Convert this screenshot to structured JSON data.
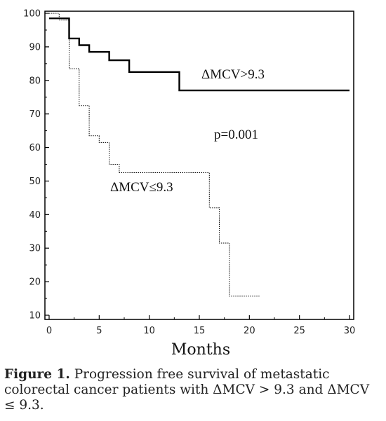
{
  "chart_data": {
    "type": "line",
    "title": "",
    "xlabel": "Months",
    "ylabel": "",
    "xlim": [
      0,
      30
    ],
    "ylim": [
      10,
      100
    ],
    "x_ticks": [
      0,
      5,
      10,
      15,
      20,
      25,
      30
    ],
    "y_ticks": [
      10,
      20,
      30,
      40,
      50,
      60,
      70,
      80,
      90,
      100
    ],
    "grid": false,
    "step": true,
    "series": [
      {
        "name": "ΔMCV>9.3",
        "style": "solid",
        "points": [
          [
            0,
            98.5
          ],
          [
            2,
            98.5
          ],
          [
            2,
            92.5
          ],
          [
            3,
            92.5
          ],
          [
            3,
            90.5
          ],
          [
            4,
            90.5
          ],
          [
            4,
            88.5
          ],
          [
            6,
            88.5
          ],
          [
            6,
            86
          ],
          [
            8,
            86
          ],
          [
            8,
            82.5
          ],
          [
            13,
            82.5
          ],
          [
            13,
            77
          ],
          [
            30,
            77
          ]
        ]
      },
      {
        "name": "ΔMCV≤9.3",
        "style": "dotted",
        "points": [
          [
            0,
            100
          ],
          [
            1,
            100
          ],
          [
            1,
            98
          ],
          [
            2,
            98
          ],
          [
            2,
            83.5
          ],
          [
            3,
            83.5
          ],
          [
            3,
            72.5
          ],
          [
            4,
            72.5
          ],
          [
            4,
            63.5
          ],
          [
            5,
            63.5
          ],
          [
            5,
            61.5
          ],
          [
            6,
            61.5
          ],
          [
            6,
            55
          ],
          [
            7,
            55
          ],
          [
            7,
            52.5
          ],
          [
            16,
            52.5
          ],
          [
            16,
            42
          ],
          [
            17,
            42
          ],
          [
            17,
            31.5
          ],
          [
            18,
            31.5
          ],
          [
            18,
            15.7
          ],
          [
            21,
            15.7
          ]
        ]
      }
    ],
    "annotations": {
      "p_value": "p=0.001"
    }
  },
  "caption": {
    "label": "Figure 1.",
    "text": " Progression free survival of metastatic colorectal cancer patients with ΔMCV > 9.3 and ΔMCV ≤ 9.3."
  }
}
